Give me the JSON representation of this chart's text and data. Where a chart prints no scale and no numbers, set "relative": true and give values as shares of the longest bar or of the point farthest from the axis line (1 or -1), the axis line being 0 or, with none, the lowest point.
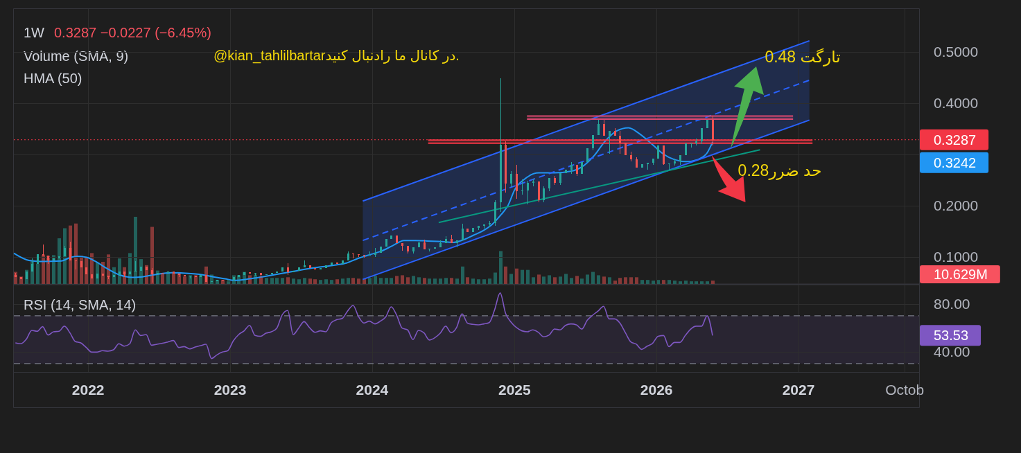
{
  "chart_data": [
    {
      "type": "candlestick",
      "title": "1W",
      "x": [
        "2021-06-28",
        "2021-07-12",
        "2021-07-26",
        "2021-08-09",
        "2021-08-23",
        "2021-09-06",
        "2021-09-20",
        "2021-10-04",
        "2021-10-18",
        "2021-11-01",
        "2021-11-15",
        "2021-11-29",
        "2021-12-13",
        "2021-12-27",
        "2022-01-10",
        "2022-01-24",
        "2022-02-07",
        "2022-02-21",
        "2022-03-07",
        "2022-03-21",
        "2022-04-04",
        "2022-04-18",
        "2022-05-02",
        "2022-05-16",
        "2022-05-30",
        "2022-06-13",
        "2022-06-27",
        "2022-07-11",
        "2022-07-25",
        "2022-08-08",
        "2022-08-22",
        "2022-09-05",
        "2022-09-19",
        "2022-10-03",
        "2022-10-17",
        "2022-10-31",
        "2022-11-14",
        "2022-11-28",
        "2022-12-12",
        "2022-12-26",
        "2023-01-09",
        "2023-01-23",
        "2023-02-06",
        "2023-02-20",
        "2023-03-06",
        "2023-03-20",
        "2023-04-03",
        "2023-04-17",
        "2023-05-01",
        "2023-05-15",
        "2023-05-29",
        "2023-06-12",
        "2023-06-26",
        "2023-07-10",
        "2023-07-24",
        "2023-08-07",
        "2023-08-21",
        "2023-09-04",
        "2023-09-18",
        "2023-10-02",
        "2023-10-16",
        "2023-10-30",
        "2023-11-13",
        "2023-11-27",
        "2023-12-11",
        "2023-12-25",
        "2024-01-08",
        "2024-01-22",
        "2024-02-05",
        "2024-02-19",
        "2024-03-04",
        "2024-03-18",
        "2024-04-01",
        "2024-04-15",
        "2024-04-29",
        "2024-05-13",
        "2024-05-27",
        "2024-06-10",
        "2024-06-24",
        "2024-07-08",
        "2024-07-22",
        "2024-08-05",
        "2024-08-19",
        "2024-09-02",
        "2024-09-16",
        "2024-09-30",
        "2024-10-14",
        "2024-10-28",
        "2024-11-11",
        "2024-11-25",
        "2024-12-09",
        "2024-12-23",
        "2025-01-06",
        "2025-01-20",
        "2025-02-03",
        "2025-02-17",
        "2025-03-03",
        "2025-03-17",
        "2025-03-31",
        "2025-04-14",
        "2025-04-28",
        "2025-05-12",
        "2025-05-26",
        "2025-06-09",
        "2025-06-23",
        "2025-07-07",
        "2025-07-21",
        "2025-08-04",
        "2025-08-18",
        "2025-09-01",
        "2025-09-15",
        "2025-09-29",
        "2025-10-13",
        "2025-10-27",
        "2025-11-10",
        "2025-11-24",
        "2025-12-08",
        "2025-12-22",
        "2026-01-05",
        "2026-01-19",
        "2026-02-02",
        "2026-02-16",
        "2026-03-02",
        "2026-03-16",
        "2026-03-30",
        "2026-04-13",
        "2026-04-27",
        "2026-05-11",
        "2026-05-25"
      ],
      "ohlc": [
        [
          0.064,
          0.068,
          0.061,
          0.061
        ],
        [
          0.061,
          0.061,
          0.056,
          0.056
        ],
        [
          0.056,
          0.071,
          0.056,
          0.071
        ],
        [
          0.071,
          0.097,
          0.071,
          0.086
        ],
        [
          0.086,
          0.105,
          0.086,
          0.105
        ],
        [
          0.105,
          0.124,
          0.102,
          0.102
        ],
        [
          0.102,
          0.102,
          0.086,
          0.093
        ],
        [
          0.093,
          0.097,
          0.093,
          0.097
        ],
        [
          0.097,
          0.101,
          0.097,
          0.101
        ],
        [
          0.101,
          0.122,
          0.101,
          0.118
        ],
        [
          0.118,
          0.13,
          0.093,
          0.093
        ],
        [
          0.093,
          0.093,
          0.075,
          0.091
        ],
        [
          0.091,
          0.091,
          0.079,
          0.079
        ],
        [
          0.079,
          0.079,
          0.066,
          0.066
        ],
        [
          0.066,
          0.066,
          0.058,
          0.058
        ],
        [
          0.058,
          0.067,
          0.058,
          0.067
        ],
        [
          0.067,
          0.067,
          0.063,
          0.063
        ],
        [
          0.063,
          0.063,
          0.057,
          0.061
        ],
        [
          0.061,
          0.064,
          0.061,
          0.064
        ],
        [
          0.064,
          0.072,
          0.064,
          0.072
        ],
        [
          0.072,
          0.072,
          0.06,
          0.066
        ],
        [
          0.066,
          0.072,
          0.066,
          0.072
        ],
        [
          0.072,
          0.092,
          0.072,
          0.073
        ],
        [
          0.073,
          0.081,
          0.073,
          0.081
        ],
        [
          0.081,
          0.081,
          0.074,
          0.074
        ],
        [
          0.074,
          0.078,
          0.05,
          0.066
        ],
        [
          0.066,
          0.069,
          0.066,
          0.069
        ],
        [
          0.069,
          0.069,
          0.068,
          0.068
        ],
        [
          0.068,
          0.071,
          0.068,
          0.071
        ],
        [
          0.071,
          0.071,
          0.067,
          0.067
        ],
        [
          0.067,
          0.067,
          0.06,
          0.064
        ],
        [
          0.064,
          0.064,
          0.062,
          0.062
        ],
        [
          0.062,
          0.063,
          0.058,
          0.063
        ],
        [
          0.063,
          0.063,
          0.061,
          0.061
        ],
        [
          0.061,
          0.064,
          0.061,
          0.064
        ],
        [
          0.064,
          0.064,
          0.051,
          0.051
        ],
        [
          0.051,
          0.052,
          0.051,
          0.052
        ],
        [
          0.052,
          0.055,
          0.052,
          0.055
        ],
        [
          0.055,
          0.055,
          0.054,
          0.054
        ],
        [
          0.054,
          0.055,
          0.054,
          0.055
        ],
        [
          0.054,
          0.06,
          0.054,
          0.06
        ],
        [
          0.06,
          0.064,
          0.06,
          0.064
        ],
        [
          0.064,
          0.07,
          0.064,
          0.07
        ],
        [
          0.07,
          0.07,
          0.067,
          0.067
        ],
        [
          0.067,
          0.068,
          0.063,
          0.068
        ],
        [
          0.068,
          0.068,
          0.059,
          0.065
        ],
        [
          0.065,
          0.066,
          0.065,
          0.066
        ],
        [
          0.066,
          0.069,
          0.066,
          0.069
        ],
        [
          0.069,
          0.071,
          0.069,
          0.071
        ],
        [
          0.071,
          0.079,
          0.071,
          0.079
        ],
        [
          0.079,
          0.087,
          0.065,
          0.07
        ],
        [
          0.07,
          0.073,
          0.07,
          0.073
        ],
        [
          0.073,
          0.079,
          0.073,
          0.079
        ],
        [
          0.079,
          0.093,
          0.079,
          0.083
        ],
        [
          0.083,
          0.083,
          0.078,
          0.078
        ],
        [
          0.078,
          0.078,
          0.075,
          0.075
        ],
        [
          0.075,
          0.078,
          0.075,
          0.078
        ],
        [
          0.078,
          0.083,
          0.078,
          0.083
        ],
        [
          0.083,
          0.089,
          0.083,
          0.089
        ],
        [
          0.089,
          0.089,
          0.086,
          0.086
        ],
        [
          0.086,
          0.093,
          0.086,
          0.093
        ],
        [
          0.093,
          0.111,
          0.093,
          0.106
        ],
        [
          0.106,
          0.106,
          0.097,
          0.105
        ],
        [
          0.105,
          0.105,
          0.1,
          0.104
        ],
        [
          0.104,
          0.104,
          0.099,
          0.103
        ],
        [
          0.103,
          0.111,
          0.103,
          0.104
        ],
        [
          0.104,
          0.117,
          0.1,
          0.108
        ],
        [
          0.108,
          0.12,
          0.108,
          0.12
        ],
        [
          0.12,
          0.135,
          0.12,
          0.135
        ],
        [
          0.135,
          0.142,
          0.135,
          0.142
        ],
        [
          0.142,
          0.142,
          0.127,
          0.127
        ],
        [
          0.127,
          0.127,
          0.112,
          0.122
        ],
        [
          0.122,
          0.122,
          0.107,
          0.111
        ],
        [
          0.111,
          0.119,
          0.106,
          0.119
        ],
        [
          0.119,
          0.128,
          0.119,
          0.128
        ],
        [
          0.128,
          0.133,
          0.115,
          0.115
        ],
        [
          0.115,
          0.116,
          0.111,
          0.116
        ],
        [
          0.116,
          0.119,
          0.116,
          0.119
        ],
        [
          0.119,
          0.132,
          0.119,
          0.127
        ],
        [
          0.127,
          0.14,
          0.127,
          0.135
        ],
        [
          0.135,
          0.143,
          0.127,
          0.127
        ],
        [
          0.127,
          0.132,
          0.119,
          0.132
        ],
        [
          0.132,
          0.165,
          0.132,
          0.155
        ],
        [
          0.155,
          0.155,
          0.148,
          0.148
        ],
        [
          0.148,
          0.157,
          0.148,
          0.157
        ],
        [
          0.157,
          0.16,
          0.153,
          0.16
        ],
        [
          0.16,
          0.164,
          0.155,
          0.164
        ],
        [
          0.164,
          0.17,
          0.158,
          0.166
        ],
        [
          0.166,
          0.21,
          0.16,
          0.206
        ],
        [
          0.206,
          0.449,
          0.187,
          0.319
        ],
        [
          0.319,
          0.325,
          0.225,
          0.243
        ],
        [
          0.243,
          0.268,
          0.236,
          0.262
        ],
        [
          0.262,
          0.28,
          0.214,
          0.228
        ],
        [
          0.228,
          0.251,
          0.222,
          0.229
        ],
        [
          0.229,
          0.248,
          0.202,
          0.244
        ],
        [
          0.244,
          0.253,
          0.238,
          0.247
        ],
        [
          0.247,
          0.247,
          0.206,
          0.211
        ],
        [
          0.211,
          0.238,
          0.207,
          0.233
        ],
        [
          0.233,
          0.254,
          0.228,
          0.254
        ],
        [
          0.254,
          0.258,
          0.24,
          0.244
        ],
        [
          0.244,
          0.263,
          0.24,
          0.263
        ],
        [
          0.263,
          0.27,
          0.263,
          0.27
        ],
        [
          0.27,
          0.285,
          0.262,
          0.279
        ],
        [
          0.279,
          0.279,
          0.258,
          0.262
        ],
        [
          0.262,
          0.285,
          0.262,
          0.285
        ],
        [
          0.285,
          0.312,
          0.285,
          0.312
        ],
        [
          0.312,
          0.338,
          0.308,
          0.338
        ],
        [
          0.338,
          0.368,
          0.338,
          0.359
        ],
        [
          0.359,
          0.368,
          0.337,
          0.337
        ],
        [
          0.337,
          0.346,
          0.301,
          0.346
        ],
        [
          0.346,
          0.352,
          0.337,
          0.337
        ],
        [
          0.337,
          0.346,
          0.301,
          0.323
        ],
        [
          0.323,
          0.323,
          0.299,
          0.299
        ],
        [
          0.299,
          0.305,
          0.286,
          0.29
        ],
        [
          0.29,
          0.295,
          0.274,
          0.274
        ],
        [
          0.274,
          0.281,
          0.274,
          0.281
        ],
        [
          0.281,
          0.284,
          0.27,
          0.284
        ],
        [
          0.284,
          0.292,
          0.279,
          0.292
        ],
        [
          0.292,
          0.317,
          0.292,
          0.317
        ],
        [
          0.317,
          0.317,
          0.279,
          0.281
        ],
        [
          0.281,
          0.282,
          0.27,
          0.282
        ],
        [
          0.282,
          0.292,
          0.278,
          0.287
        ],
        [
          0.287,
          0.298,
          0.28,
          0.298
        ],
        [
          0.298,
          0.321,
          0.298,
          0.321
        ],
        [
          0.321,
          0.322,
          0.314,
          0.322
        ],
        [
          0.322,
          0.331,
          0.318,
          0.326
        ],
        [
          0.326,
          0.352,
          0.32,
          0.352
        ],
        [
          0.352,
          0.367,
          0.352,
          0.367
        ],
        [
          0.367,
          0.376,
          0.318,
          0.3287
        ]
      ],
      "series": [
        {
          "type": "line",
          "color": "#2196f3",
          "x": [
            "2021-06-24",
            "2021-08-02",
            "2021-08-31",
            "2021-10-24",
            "2021-11-17",
            "2021-12-05",
            "2021-12-28",
            "2022-01-20",
            "2022-02-19",
            "2022-03-22",
            "2022-04-26",
            "2022-05-20",
            "2022-06-19",
            "2022-08-04",
            "2022-09-09",
            "2022-10-22",
            "2022-11-19",
            "2022-12-19",
            "2023-01-11",
            "2023-02-19",
            "2023-04-01",
            "2023-06-01",
            "2023-07-30",
            "2023-09-27",
            "2023-10-27",
            "2023-11-26",
            "2023-12-25",
            "2024-01-24",
            "2024-02-23",
            "2024-03-23",
            "2024-04-22",
            "2024-05-22",
            "2024-06-27",
            "2024-07-26",
            "2024-08-25",
            "2024-09-17",
            "2024-10-12",
            "2024-11-04",
            "2024-11-27",
            "2024-12-15",
            "2025-01-02",
            "2025-01-27",
            "2025-03-04",
            "2025-04-14",
            "2025-05-25",
            "2025-06-24",
            "2025-07-24",
            "2025-08-22",
            "2025-09-21",
            "2025-10-21",
            "2025-11-19",
            "2025-12-19",
            "2026-01-18",
            "2026-02-16",
            "2026-03-18",
            "2026-04-17",
            "2026-05-11",
            "2026-05-25"
          ],
          "values": [
            0.107,
            0.093,
            0.091,
            0.092,
            0.099,
            0.101,
            0.099,
            0.091,
            0.077,
            0.065,
            0.06,
            0.061,
            0.065,
            0.069,
            0.068,
            0.065,
            0.061,
            0.057,
            0.054,
            0.057,
            0.062,
            0.07,
            0.078,
            0.084,
            0.088,
            0.097,
            0.104,
            0.111,
            0.122,
            0.132,
            0.132,
            0.131,
            0.13,
            0.128,
            0.134,
            0.142,
            0.151,
            0.163,
            0.182,
            0.2,
            0.232,
            0.252,
            0.264,
            0.264,
            0.267,
            0.276,
            0.297,
            0.326,
            0.346,
            0.352,
            0.34,
            0.321,
            0.301,
            0.29,
            0.286,
            0.29,
            0.303,
            0.3242
          ]
        },
        {
          "type": "line",
          "color": "#2962ff",
          "x": [
            "2023-12-08",
            "2027-01-29"
          ],
          "values": [
            0.209,
            0.522
          ]
        },
        {
          "type": "line",
          "color": "#2962ff",
          "x": [
            "2023-12-08",
            "2027-01-29"
          ],
          "values": [
            0.056,
            0.367
          ]
        },
        {
          "type": "line",
          "color": "#2962ff",
          "line_style": "dashed",
          "x": [
            "2023-12-08",
            "2027-01-29"
          ],
          "values": [
            0.132,
            0.445
          ],
          "lower": [
            0.056,
            0.367
          ],
          "upper": [
            0.209,
            0.522
          ]
        },
        {
          "type": "line",
          "color": "#089981",
          "x": [
            "2024-06-20",
            "2026-09-24"
          ],
          "values": [
            0.167,
            0.309
          ]
        },
        {
          "type": "line",
          "color": "#d9486f",
          "x": [
            "2025-02-02",
            "2026-12-18"
          ],
          "values": [
            0.375,
            0.375
          ],
          "lower": [
            0.369,
            0.369
          ],
          "upper": [
            0.375,
            0.375
          ]
        },
        {
          "type": "line",
          "color": "#d9486f",
          "x": [
            "2025-02-02",
            "2026-12-18"
          ],
          "values": [
            0.369,
            0.369
          ]
        },
        {
          "type": "line",
          "color": "#f23645",
          "x": [
            "2024-05-24",
            "2027-02-06"
          ],
          "values": [
            0.328,
            0.328
          ],
          "lower": [
            0.322,
            0.322
          ],
          "upper": [
            0.328,
            0.328
          ]
        },
        {
          "type": "line",
          "color": "#f23645",
          "x": [
            "2024-05-24",
            "2027-02-06"
          ],
          "values": [
            0.322,
            0.322
          ]
        }
      ],
      "xlim": [
        "2021-06-24",
        "2027-11-07"
      ],
      "xticks": [
        "2022",
        "2023",
        "2024",
        "2025",
        "2026",
        "2027",
        {
          "value": "2027-10",
          "label": null
        }
      ],
      "ylim": [
        0.047,
        0.584
      ],
      "yticks": [
        {
          "value": 0.1,
          "label": "0.1000"
        },
        {
          "value": 0.2,
          "label": "0.2000"
        },
        {
          "value": 0.3,
          "label": null
        },
        {
          "value": 0.4,
          "label": "0.4000"
        },
        {
          "value": 0.5,
          "label": "0.5000"
        }
      ],
      "grid": true,
      "tick_labels": "y",
      "ref_lines": [
        {
          "axis": "y",
          "value": 0.3287,
          "label": "0.3287",
          "color": "#f23645",
          "line_style": "dotted"
        }
      ],
      "annotations": [
        "0.3287 −0.0227 (−6.45%)",
        "HMA (50)",
        "@kian_tahlilbartarدر کانال ما رادنبال کنید.",
        "تارگت 0.48",
        "حد ضرر0.28",
        "0.3242"
      ]
    },
    {
      "type": "bar",
      "title": "Volume (SMA, 9)",
      "relative": true,
      "x": [
        "2021-06-28",
        "2021-07-12",
        "2021-07-26",
        "2021-08-09",
        "2021-08-23",
        "2021-09-06",
        "2021-09-20",
        "2021-10-04",
        "2021-10-18",
        "2021-11-01",
        "2021-11-15",
        "2021-11-29",
        "2021-12-13",
        "2021-12-27",
        "2022-01-10",
        "2022-01-24",
        "2022-02-07",
        "2022-02-21",
        "2022-03-07",
        "2022-03-21",
        "2022-04-04",
        "2022-04-18",
        "2022-05-02",
        "2022-05-16",
        "2022-05-30",
        "2022-06-13",
        "2022-06-27",
        "2022-07-11",
        "2022-07-25",
        "2022-08-08",
        "2022-08-22",
        "2022-09-05",
        "2022-09-19",
        "2022-10-03",
        "2022-10-17",
        "2022-10-31",
        "2022-11-14",
        "2022-11-28",
        "2022-12-12",
        "2022-12-26",
        "2023-01-09",
        "2023-01-23",
        "2023-02-06",
        "2023-02-20",
        "2023-03-06",
        "2023-03-20",
        "2023-04-03",
        "2023-04-17",
        "2023-05-01",
        "2023-05-15",
        "2023-05-29",
        "2023-06-12",
        "2023-06-26",
        "2023-07-10",
        "2023-07-24",
        "2023-08-07",
        "2023-08-21",
        "2023-09-04",
        "2023-09-18",
        "2023-10-02",
        "2023-10-16",
        "2023-10-30",
        "2023-11-13",
        "2023-11-27",
        "2023-12-11",
        "2023-12-25",
        "2024-01-08",
        "2024-01-22",
        "2024-02-05",
        "2024-02-19",
        "2024-03-04",
        "2024-03-18",
        "2024-04-01",
        "2024-04-15",
        "2024-04-29",
        "2024-05-13",
        "2024-05-27",
        "2024-06-10",
        "2024-06-24",
        "2024-07-08",
        "2024-07-22",
        "2024-08-05",
        "2024-08-19",
        "2024-09-02",
        "2024-09-16",
        "2024-09-30",
        "2024-10-14",
        "2024-10-28",
        "2024-11-11",
        "2024-11-25",
        "2024-12-09",
        "2024-12-23",
        "2025-01-06",
        "2025-01-20",
        "2025-02-03",
        "2025-02-17",
        "2025-03-03",
        "2025-03-17",
        "2025-03-31",
        "2025-04-14",
        "2025-04-28",
        "2025-05-12",
        "2025-05-26",
        "2025-06-09",
        "2025-06-23",
        "2025-07-07",
        "2025-07-21",
        "2025-08-04",
        "2025-08-18",
        "2025-09-01",
        "2025-09-15",
        "2025-09-29",
        "2025-10-13",
        "2025-10-27",
        "2025-11-10",
        "2025-11-24",
        "2025-12-08",
        "2025-12-22",
        "2026-01-05",
        "2026-01-19",
        "2026-02-02",
        "2026-02-16",
        "2026-03-02",
        "2026-03-16",
        "2026-03-30",
        "2026-04-13",
        "2026-04-27",
        "2026-05-11",
        "2026-05-25"
      ],
      "values": [
        0.18,
        0.11,
        0.21,
        0.35,
        0.3,
        0.43,
        0.42,
        0.43,
        0.68,
        0.83,
        0.87,
        0.9,
        0.42,
        0.4,
        0.46,
        0.32,
        0.33,
        0.44,
        0.25,
        0.38,
        0.25,
        0.46,
        1,
        0.37,
        0.28,
        0.85,
        0.2,
        0.16,
        0.18,
        0.16,
        0.16,
        0.11,
        0.13,
        0.13,
        0.13,
        0.26,
        0.14,
        0.06,
        0.06,
        0.04,
        0.13,
        0.13,
        0.18,
        0.13,
        0.14,
        0.11,
        0.09,
        0.09,
        0.09,
        0.09,
        0.1,
        0.08,
        0.07,
        0.09,
        0.08,
        0.07,
        0.06,
        0.07,
        0.06,
        0.07,
        0.08,
        0.09,
        0.09,
        0.08,
        0.08,
        0.09,
        0.12,
        0.09,
        0.09,
        0.09,
        0.12,
        0.13,
        0.1,
        0.12,
        0.1,
        0.09,
        0.08,
        0.08,
        0.08,
        0.09,
        0.09,
        0.08,
        0.26,
        0.1,
        0.08,
        0.07,
        0.07,
        0.08,
        0.17,
        0.49,
        0.26,
        0.15,
        0.23,
        0.21,
        0.21,
        0.1,
        0.14,
        0.11,
        0.13,
        0.1,
        0.11,
        0.15,
        0.09,
        0.12,
        0.08,
        0.14,
        0.18,
        0.13,
        0.11,
        0.1,
        0.05,
        0.09,
        0.1,
        0.1,
        0.1,
        0.06,
        0.06,
        0.05,
        0.06,
        0.06,
        0.06,
        0.05,
        0.04,
        0.05,
        0.04,
        0.04,
        0.04,
        0.04,
        0.05
      ],
      "colors": [
        "#873938",
        "#873938",
        "#22625c",
        "#22625c",
        "#22625c",
        "#873938",
        "#873938",
        "#22625c",
        "#22625c",
        "#22625c",
        "#873938",
        "#873938",
        "#873938",
        "#873938",
        "#873938",
        "#22625c",
        "#873938",
        "#873938",
        "#22625c",
        "#22625c",
        "#873938",
        "#22625c",
        "#22625c",
        "#22625c",
        "#873938",
        "#873938",
        "#22625c",
        "#873938",
        "#22625c",
        "#873938",
        "#873938",
        "#873938",
        "#22625c",
        "#873938",
        "#22625c",
        "#873938",
        "#22625c",
        "#22625c",
        "#873938",
        "#22625c",
        "#22625c",
        "#22625c",
        "#22625c",
        "#873938",
        "#22625c",
        "#873938",
        "#22625c",
        "#22625c",
        "#22625c",
        "#22625c",
        "#873938",
        "#22625c",
        "#22625c",
        "#22625c",
        "#873938",
        "#873938",
        "#22625c",
        "#22625c",
        "#22625c",
        "#873938",
        "#22625c",
        "#22625c",
        "#873938",
        "#873938",
        "#873938",
        "#22625c",
        "#22625c",
        "#22625c",
        "#22625c",
        "#22625c",
        "#873938",
        "#873938",
        "#873938",
        "#22625c",
        "#22625c",
        "#873938",
        "#22625c",
        "#22625c",
        "#22625c",
        "#22625c",
        "#873938",
        "#22625c",
        "#22625c",
        "#873938",
        "#22625c",
        "#22625c",
        "#22625c",
        "#22625c",
        "#22625c",
        "#22625c",
        "#873938",
        "#22625c",
        "#873938",
        "#22625c",
        "#22625c",
        "#22625c",
        "#873938",
        "#22625c",
        "#22625c",
        "#873938",
        "#22625c",
        "#22625c",
        "#22625c",
        "#873938",
        "#22625c",
        "#22625c",
        "#22625c",
        "#22625c",
        "#873938",
        "#22625c",
        "#873938",
        "#873938",
        "#873938",
        "#873938",
        "#873938",
        "#22625c",
        "#22625c",
        "#22625c",
        "#22625c",
        "#873938",
        "#22625c",
        "#22625c",
        "#22625c",
        "#22625c",
        "#22625c",
        "#22625c",
        "#22625c",
        "#22625c",
        "#873938"
      ],
      "xlim": [
        "2021-06-24",
        "2027-11-07"
      ],
      "tick_labels": false,
      "annotations": [
        "10.629M"
      ]
    },
    {
      "type": "line",
      "title": "RSI (14, SMA, 14)",
      "x": [
        "2021-06-28",
        "2021-07-12",
        "2021-07-26",
        "2021-08-09",
        "2021-08-23",
        "2021-09-06",
        "2021-09-20",
        "2021-10-04",
        "2021-10-18",
        "2021-11-01",
        "2021-11-15",
        "2021-11-29",
        "2021-12-13",
        "2021-12-27",
        "2022-01-10",
        "2022-01-24",
        "2022-02-07",
        "2022-02-21",
        "2022-03-07",
        "2022-03-21",
        "2022-04-04",
        "2022-04-18",
        "2022-05-02",
        "2022-05-16",
        "2022-05-30",
        "2022-06-13",
        "2022-06-27",
        "2022-07-11",
        "2022-07-25",
        "2022-08-08",
        "2022-08-22",
        "2022-09-05",
        "2022-09-19",
        "2022-10-03",
        "2022-10-17",
        "2022-10-31",
        "2022-11-14",
        "2022-11-28",
        "2022-12-12",
        "2022-12-26",
        "2023-01-09",
        "2023-01-23",
        "2023-02-06",
        "2023-02-20",
        "2023-03-06",
        "2023-03-20",
        "2023-04-03",
        "2023-04-17",
        "2023-05-01",
        "2023-05-15",
        "2023-05-29",
        "2023-06-12",
        "2023-06-26",
        "2023-07-10",
        "2023-07-24",
        "2023-08-07",
        "2023-08-21",
        "2023-09-04",
        "2023-09-18",
        "2023-10-02",
        "2023-10-16",
        "2023-10-30",
        "2023-11-13",
        "2023-11-27",
        "2023-12-11",
        "2023-12-25",
        "2024-01-08",
        "2024-01-22",
        "2024-02-05",
        "2024-02-19",
        "2024-03-04",
        "2024-03-18",
        "2024-04-01",
        "2024-04-15",
        "2024-04-29",
        "2024-05-13",
        "2024-05-27",
        "2024-06-10",
        "2024-06-24",
        "2024-07-08",
        "2024-07-22",
        "2024-08-05",
        "2024-08-19",
        "2024-09-02",
        "2024-09-16",
        "2024-09-30",
        "2024-10-14",
        "2024-10-28",
        "2024-11-11",
        "2024-11-25",
        "2024-12-09",
        "2024-12-23",
        "2025-01-06",
        "2025-01-20",
        "2025-02-03",
        "2025-02-17",
        "2025-03-03",
        "2025-03-17",
        "2025-03-31",
        "2025-04-14",
        "2025-04-28",
        "2025-05-12",
        "2025-05-26",
        "2025-06-09",
        "2025-06-23",
        "2025-07-07",
        "2025-07-21",
        "2025-08-04",
        "2025-08-18",
        "2025-09-01",
        "2025-09-15",
        "2025-09-29",
        "2025-10-13",
        "2025-10-27",
        "2025-11-10",
        "2025-11-24",
        "2025-12-08",
        "2025-12-22",
        "2026-01-05",
        "2026-01-19",
        "2026-02-02",
        "2026-02-16",
        "2026-03-02",
        "2026-03-16",
        "2026-03-30",
        "2026-04-13",
        "2026-04-27",
        "2026-05-11",
        "2026-05-25"
      ],
      "series": [
        {
          "color": "#7e57c2",
          "values": [
            47.3,
            46.6,
            50.4,
            57.8,
            57,
            60.9,
            53.9,
            56.6,
            57,
            61.3,
            55.8,
            48.5,
            47.3,
            43.5,
            39.6,
            39.6,
            40.8,
            40.4,
            41.5,
            46.6,
            44.6,
            46.6,
            58.2,
            53.5,
            54.3,
            45.4,
            46.2,
            47,
            48.1,
            49.3,
            43.5,
            44.2,
            42.3,
            43.9,
            45,
            46.2,
            34.2,
            37.3,
            39.6,
            40.8,
            48.9,
            54.3,
            57.4,
            62,
            53.5,
            52.8,
            55.4,
            56.6,
            59.7,
            70.9,
            74.4,
            54.3,
            59.7,
            65.1,
            60.1,
            56.2,
            57.4,
            56.6,
            64.3,
            66.7,
            67.8,
            74,
            78.6,
            69.4,
            63.9,
            65.5,
            63.2,
            65.5,
            69.1,
            77.5,
            70.5,
            59.7,
            58.2,
            50.1,
            57.8,
            55.8,
            49.7,
            51.6,
            55.4,
            61.3,
            55.8,
            60.1,
            71.7,
            63.9,
            62.8,
            62.4,
            63.2,
            64.3,
            75.2,
            89.1,
            72,
            64.7,
            60.1,
            57.4,
            56.6,
            58.2,
            56.2,
            52.4,
            53.9,
            58.9,
            58.2,
            62,
            63.2,
            62.4,
            58.9,
            66.3,
            70.5,
            74,
            77.9,
            67.4,
            67.4,
            63.9,
            55.8,
            48.1,
            46.2,
            41.9,
            44.6,
            47,
            52.8,
            53.5,
            44.2,
            47.7,
            47.7,
            53.5,
            58.9,
            61.3,
            61.3,
            70,
            53.53
          ]
        }
      ],
      "xlim": [
        "2021-06-24",
        "2027-11-07"
      ],
      "xticks": [
        "2022",
        "2023",
        "2024",
        "2025",
        "2026",
        "2027",
        {
          "value": "2027-10",
          "label": "Octob"
        }
      ],
      "ylim": [
        23,
        96
      ],
      "yticks": [
        {
          "value": 80,
          "label": "80.00"
        },
        {
          "value": 40,
          "label": "40.00"
        }
      ],
      "grid": true,
      "bands": [
        {
          "axis": "y",
          "from": 30,
          "to": 70,
          "color": "#7e57c2"
        }
      ],
      "ref_lines": [
        {
          "axis": "y",
          "value": 70,
          "color": "#787b86",
          "line_style": "dashed"
        },
        {
          "axis": "y",
          "value": 30,
          "color": "#787b86",
          "line_style": "dashed"
        }
      ],
      "annotations": [
        "53.53"
      ]
    }
  ]
}
